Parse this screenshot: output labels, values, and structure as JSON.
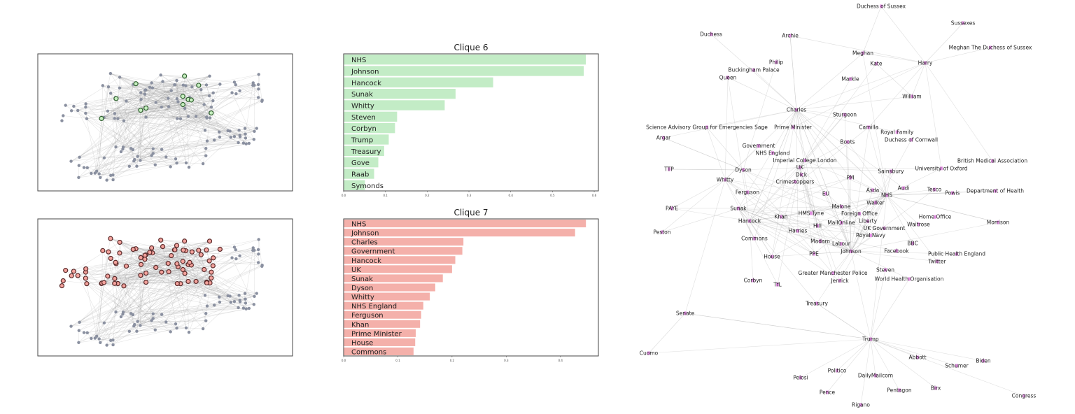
{
  "colors": {
    "clique6_bar": "#c3ecc6",
    "clique6_node": "#c6efbf",
    "clique6_node_edge": "#2f5f2f",
    "clique7_bar": "#f4b0aa",
    "clique7_node": "#f3a29c",
    "clique7_node_edge": "#5a2a2a",
    "graph_node": "#8a90a0",
    "label_node": "#e07be0",
    "edge": "#bbbbbb"
  },
  "chart_data": [
    {
      "type": "bar",
      "orientation": "horizontal",
      "title": "Clique 6",
      "categories": [
        "NHS",
        "Johnson",
        "Hancock",
        "Sunak",
        "Whitty",
        "Steven",
        "Corbyn",
        "Trump",
        "Treasury",
        "Gove",
        "Raab",
        "Symonds"
      ],
      "values": [
        0.58,
        0.575,
        0.358,
        0.268,
        0.242,
        0.128,
        0.123,
        0.108,
        0.097,
        0.083,
        0.073,
        0.051
      ],
      "xlim": [
        0,
        0.61
      ],
      "xticks": [
        "0.0",
        "0.1",
        "0.2",
        "0.3",
        "0.4",
        "0.5",
        "0.6"
      ],
      "grid": false
    },
    {
      "type": "bar",
      "orientation": "horizontal",
      "title": "Clique 7",
      "categories": [
        "NHS",
        "Johnson",
        "Charles",
        "Government",
        "Hancock",
        "UK",
        "Sunak",
        "Dyson",
        "Whitty",
        "NHS England",
        "Ferguson",
        "Khan",
        "Prime Minister",
        "House",
        "Commons"
      ],
      "values": [
        0.447,
        0.427,
        0.221,
        0.219,
        0.206,
        0.2,
        0.183,
        0.169,
        0.159,
        0.147,
        0.143,
        0.141,
        0.133,
        0.132,
        0.129
      ],
      "xlim": [
        0,
        0.47
      ],
      "xticks": [
        "0.0",
        "0.1",
        "0.2",
        "0.3",
        "0.4"
      ],
      "grid": false
    }
  ],
  "network": {
    "nodes": [
      "Duchess of Sussex",
      "Sussexes",
      "Duchess",
      "Archie",
      "Meghan The Duchess of Sussex",
      "Meghan",
      "Kate",
      "Harry",
      "Philip",
      "Queen",
      "Buckingham Palace",
      "Markle",
      "William",
      "Charles",
      "Sturgeon",
      "Science Advisory Group for Emergencies Sage",
      "Prime Minister",
      "Camilla",
      "Royal Family",
      "Duchess of Cornwall",
      "Argar",
      "Boots",
      "Government",
      "NHS England",
      "Imperial College London",
      "UK",
      "TTP",
      "Dyson",
      "Sainsbury",
      "University of Oxford",
      "British Medical Association",
      "Dick",
      "Crimestoppers",
      "PM",
      "Whitty",
      "Ferguson",
      "EU",
      "Asda",
      "Audi",
      "Tesco",
      "Powis",
      "Department of Health",
      "NHS",
      "Walker",
      "PAYE",
      "Sunak",
      "HMS Tyne",
      "Malone",
      "Khan",
      "Hancock",
      "Foreign Office",
      "Liberty",
      "Home Office",
      "MailOnline",
      "Hill",
      "UK Government",
      "Waitrose",
      "Morrison",
      "Harries",
      "Royal Navy",
      "Peston",
      "Commons",
      "Madam",
      "Labour",
      "BBC",
      "Johnson",
      "Facebook",
      "PPE",
      "House",
      "Public Health England",
      "Twitter",
      "Steven",
      "Greater Manchester Police",
      "Jenrick",
      "World Health Organisation",
      "Corbyn",
      "TfL",
      "Treasury",
      "Senate",
      "Trump",
      "Cuomo",
      "Abbott",
      "Biden",
      "Schumer",
      "Politico",
      "Pelosi",
      "DailyMailcom",
      "Pence",
      "Birx",
      "Pentagon",
      "Congress",
      "Rigano"
    ]
  }
}
